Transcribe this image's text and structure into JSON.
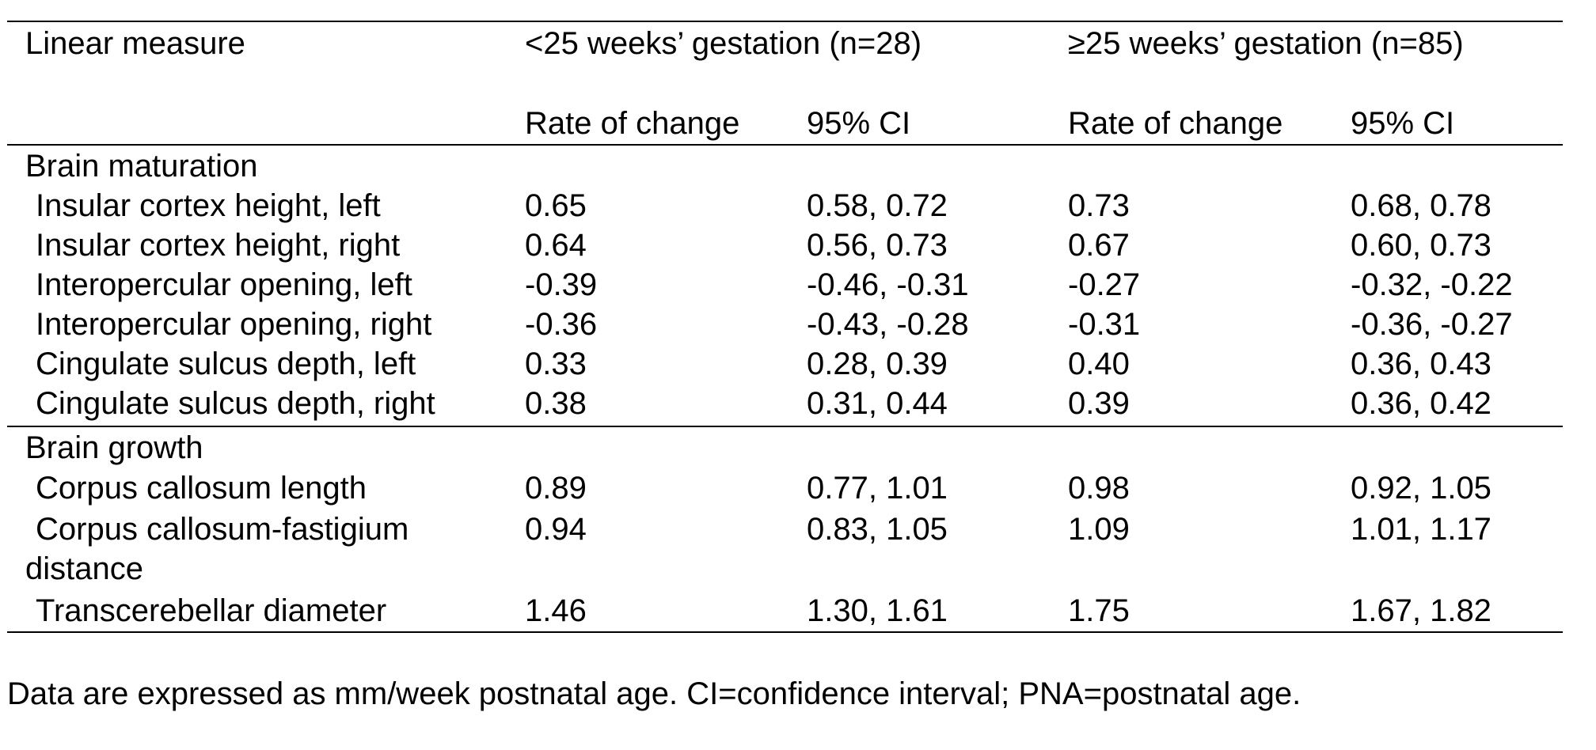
{
  "header": {
    "col0": "Linear measure",
    "group1": "<25 weeks’ gestation (n=28)",
    "group2": "≥25 weeks’ gestation (n=85)",
    "sub1_rate": "Rate of change",
    "sub1_ci": "95% CI",
    "sub2_rate": "Rate of change",
    "sub2_ci": "95% CI"
  },
  "sections": [
    {
      "title": "Brain maturation",
      "rows": [
        {
          "measure": "Insular cortex height, left",
          "r1": "0.65",
          "ci1": "0.58, 0.72",
          "r2": "0.73",
          "ci2": "0.68, 0.78"
        },
        {
          "measure": "Insular cortex height, right",
          "r1": "0.64",
          "ci1": "0.56, 0.73",
          "r2": "0.67",
          "ci2": "0.60, 0.73"
        },
        {
          "measure": "Interopercular opening, left",
          "r1": "-0.39",
          "ci1": "-0.46, -0.31",
          "r2": "-0.27",
          "ci2": "-0.32, -0.22"
        },
        {
          "measure": "Interopercular opening, right",
          "r1": "-0.36",
          "ci1": "-0.43, -0.28",
          "r2": "-0.31",
          "ci2": "-0.36, -0.27"
        },
        {
          "measure": "Cingulate sulcus depth, left",
          "r1": "0.33",
          "ci1": "0.28, 0.39",
          "r2": "0.40",
          "ci2": "0.36, 0.43"
        },
        {
          "measure": "Cingulate sulcus depth, right",
          "r1": "0.38",
          "ci1": "0.31, 0.44",
          "r2": "0.39",
          "ci2": "0.36, 0.42"
        }
      ]
    },
    {
      "title": "Brain growth",
      "rows": [
        {
          "measure": "Corpus callosum length",
          "r1": "0.89",
          "ci1": "0.77, 1.01",
          "r2": "0.98",
          "ci2": "0.92, 1.05"
        },
        {
          "measure": "Corpus callosum-fastigium",
          "measure_cont": "distance",
          "r1": "0.94",
          "ci1": "0.83, 1.05",
          "r2": "1.09",
          "ci2": "1.01, 1.17"
        },
        {
          "measure": "Transcerebellar diameter",
          "r1": "1.46",
          "ci1": "1.30, 1.61",
          "r2": "1.75",
          "ci2": "1.67, 1.82"
        }
      ]
    }
  ],
  "footnote": "Data are expressed as mm/week postnatal age.  CI=confidence interval; PNA=postnatal age."
}
